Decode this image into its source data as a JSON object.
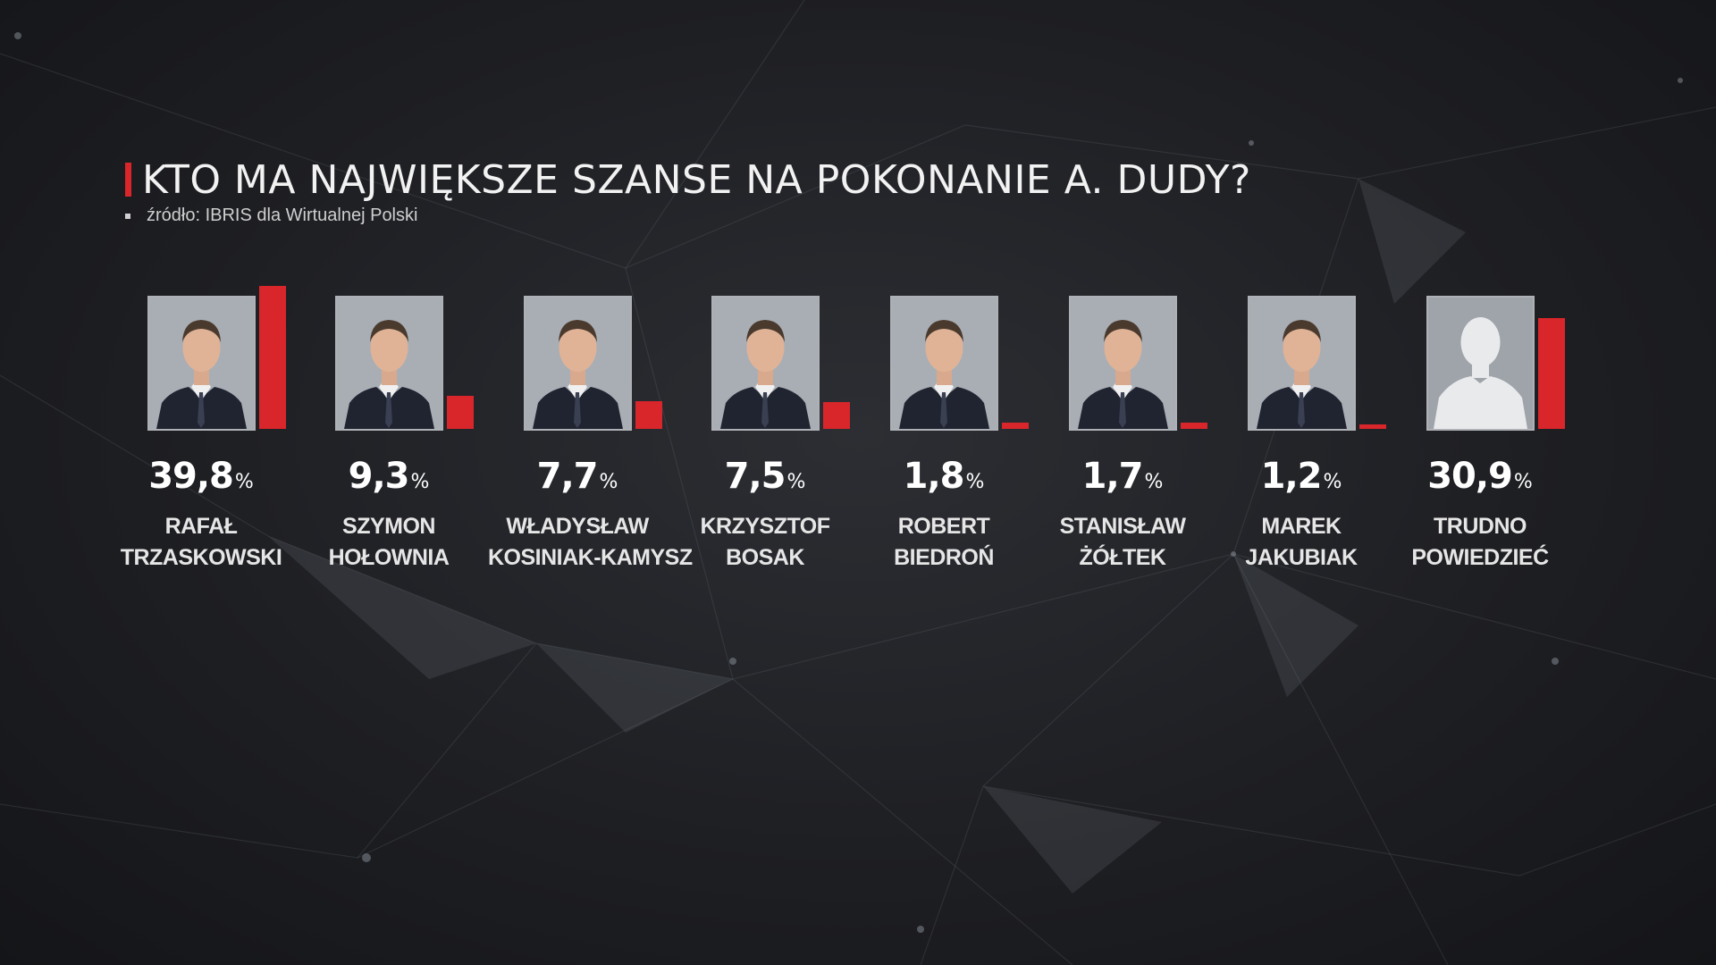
{
  "title": "KTO MA NAJWIĘKSZE SZANSE NA POKONANIE A. DUDY?",
  "source": "źródło: IBRIS dla Wirtualnej Polski",
  "percent_sign": "%",
  "colors": {
    "accent": "#d8262b",
    "background": "#1e1f23",
    "text": "#ffffff"
  },
  "candidates": [
    {
      "value_label": "39,8",
      "name_line1": "RAFAŁ",
      "name_line2": "TRZASKOWSKI",
      "photo": "portrait"
    },
    {
      "value_label": "9,3",
      "name_line1": "SZYMON",
      "name_line2": "HOŁOWNIA",
      "photo": "portrait"
    },
    {
      "value_label": "7,7",
      "name_line1": "WŁADYSŁAW",
      "name_line2": "KOSINIAK-KAMYSZ",
      "photo": "portrait"
    },
    {
      "value_label": "7,5",
      "name_line1": "KRZYSZTOF",
      "name_line2": "BOSAK",
      "photo": "portrait"
    },
    {
      "value_label": "1,8",
      "name_line1": "ROBERT",
      "name_line2": "BIEDROŃ",
      "photo": "portrait"
    },
    {
      "value_label": "1,7",
      "name_line1": "STANISŁAW",
      "name_line2": "ŻÓŁTEK",
      "photo": "portrait"
    },
    {
      "value_label": "1,2",
      "name_line1": "MAREK",
      "name_line2": "JAKUBIAK",
      "photo": "portrait"
    },
    {
      "value_label": "30,9",
      "name_line1": "TRUDNO",
      "name_line2": "POWIEDZIEĆ",
      "photo": "silhouette"
    }
  ],
  "chart_data": {
    "type": "bar",
    "categories": [
      "RAFAŁ TRZASKOWSKI",
      "SZYMON HOŁOWNIA",
      "WŁADYSŁAW KOSINIAK-KAMYSZ",
      "KRZYSZTOF BOSAK",
      "ROBERT BIEDROŃ",
      "STANISŁAW ŻÓŁTEK",
      "MAREK JAKUBIAK",
      "TRUDNO POWIEDZIEĆ"
    ],
    "values": [
      39.8,
      9.3,
      7.7,
      7.5,
      1.8,
      1.7,
      1.2,
      30.9
    ],
    "title": "KTO MA NAJWIĘKSZE SZANSE NA POKONANIE A. DUDY?",
    "subtitle": "źródło: IBRIS dla Wirtualnej Polski",
    "unit": "%",
    "ylim": [
      0,
      39.8
    ],
    "grid": false,
    "legend": "none",
    "bar_color": "#d8262b"
  }
}
